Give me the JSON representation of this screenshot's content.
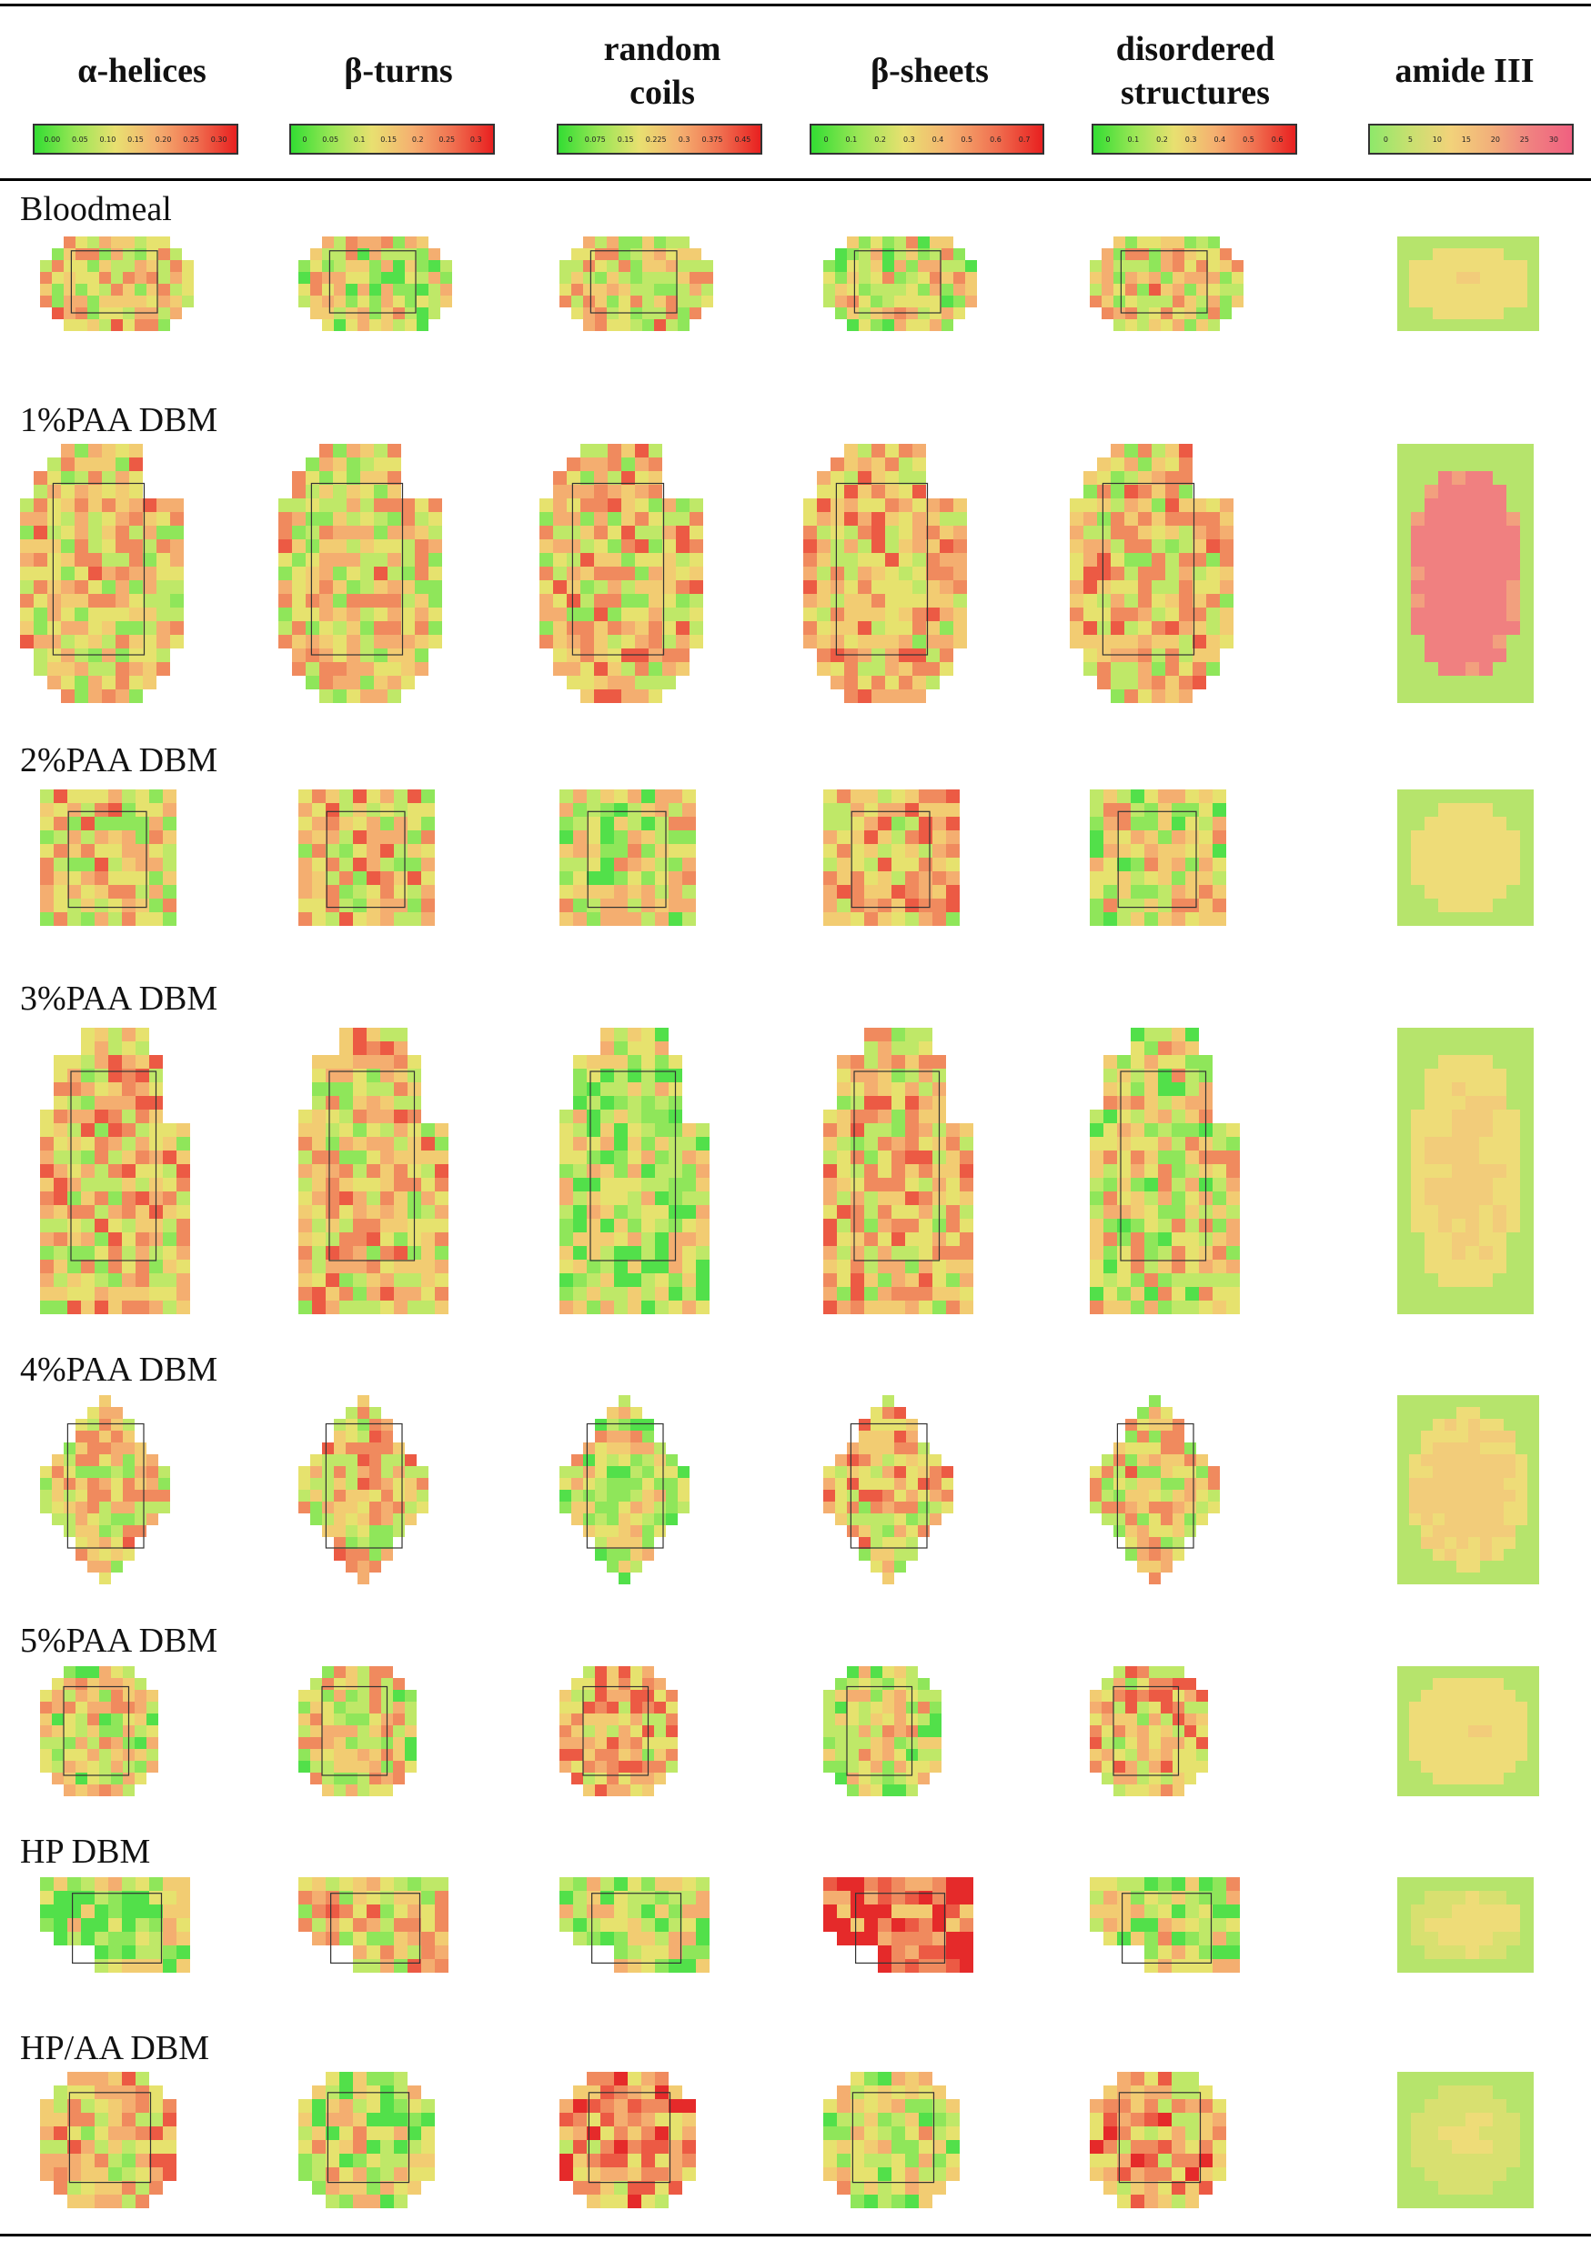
{
  "columns": [
    {
      "key": "alpha",
      "title_lines": [
        "α-helices"
      ],
      "scale_ticks": [
        "0.00",
        "0.05",
        "0.10",
        "0.15",
        "0.20",
        "0.25",
        "0.30"
      ]
    },
    {
      "key": "beta_turns",
      "title_lines": [
        "β-turns"
      ],
      "scale_ticks": [
        "0",
        "0.05",
        "0.1",
        "0.15",
        "0.2",
        "0.25",
        "0.3"
      ]
    },
    {
      "key": "random_coils",
      "title_lines": [
        "random",
        "coils"
      ],
      "scale_ticks": [
        "0",
        "0.075",
        "0.15",
        "0.225",
        "0.3",
        "0.375",
        "0.45"
      ]
    },
    {
      "key": "beta_sheets",
      "title_lines": [
        "β-sheets"
      ],
      "scale_ticks": [
        "0",
        "0.1",
        "0.2",
        "0.3",
        "0.4",
        "0.5",
        "0.6",
        "0.7"
      ]
    },
    {
      "key": "disordered",
      "title_lines": [
        "disordered",
        "structures"
      ],
      "scale_ticks": [
        "0",
        "0.1",
        "0.2",
        "0.3",
        "0.4",
        "0.5",
        "0.6"
      ]
    },
    {
      "key": "amide3",
      "title_lines": [
        "amide III"
      ],
      "scale_ticks": [
        "0",
        "5",
        "10",
        "15",
        "20",
        "25",
        "30"
      ]
    }
  ],
  "rows": [
    {
      "label": "Bloodmeal"
    },
    {
      "label": "1%PAA DBM"
    },
    {
      "label": "2%PAA DBM"
    },
    {
      "label": "3%PAA DBM"
    },
    {
      "label": "4%PAA DBM"
    },
    {
      "label": "5%PAA DBM"
    },
    {
      "label": "HP DBM"
    },
    {
      "label": "HP/AA DBM"
    }
  ],
  "colors": {
    "scale_gradient": [
      "#33dd33",
      "#99e655",
      "#e8e070",
      "#f5b070",
      "#f07050",
      "#e82020"
    ],
    "amide_gradient": [
      "#8ee86a",
      "#c8e070",
      "#f2d27a",
      "#f2b07a",
      "#f08080",
      "#f06080"
    ]
  }
}
